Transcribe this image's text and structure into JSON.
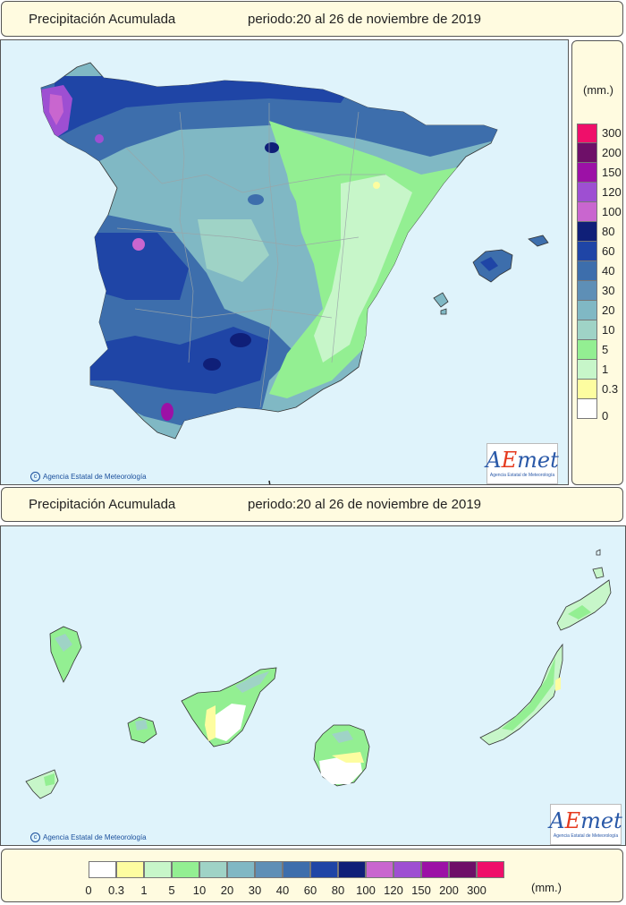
{
  "top_header": {
    "title": "Precipitación Acumulada",
    "period": "periodo:20 al 26 de noviembre de 2019"
  },
  "bottom_header": {
    "title": "Precipitación Acumulada",
    "period": "periodo:20 al 26 de noviembre de 2019"
  },
  "credit": "Agencia Estatal de Meteorología",
  "logo": {
    "word_a": "A",
    "word_e": "E",
    "word_rest": "met",
    "subtitle": "Agencia Estatal de Meteorología"
  },
  "legend": {
    "unit": "(mm.)",
    "classes": [
      {
        "label": "0",
        "color": "#ffffff"
      },
      {
        "label": "0.3",
        "color": "#fdfda0"
      },
      {
        "label": "1",
        "color": "#c7f6c9"
      },
      {
        "label": "5",
        "color": "#93ef92"
      },
      {
        "label": "10",
        "color": "#9fd3c6"
      },
      {
        "label": "20",
        "color": "#80b8c4"
      },
      {
        "label": "30",
        "color": "#5e8fb6"
      },
      {
        "label": "40",
        "color": "#3d6eac"
      },
      {
        "label": "60",
        "color": "#1f45a6"
      },
      {
        "label": "80",
        "color": "#0f1f78"
      },
      {
        "label": "100",
        "color": "#c966cf"
      },
      {
        "label": "120",
        "color": "#9e4fd2"
      },
      {
        "label": "150",
        "color": "#9c11a6"
      },
      {
        "label": "200",
        "color": "#6e0f68"
      },
      {
        "label": "300",
        "color": "#ef0f6a"
      }
    ]
  },
  "colors": {
    "sea": "#dff3fb",
    "panel": "#fffbe0",
    "border": "#808080"
  }
}
